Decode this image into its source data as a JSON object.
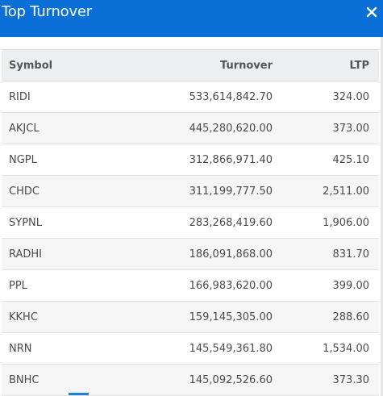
{
  "header": {
    "title": "Top Turnover",
    "close_icon": "close-icon",
    "background": "#0a6fd6"
  },
  "table": {
    "columns": {
      "symbol": "Symbol",
      "turnover": "Turnover",
      "ltp": "LTP"
    },
    "rows": [
      {
        "symbol": "RIDI",
        "turnover": "533,614,842.70",
        "ltp": "324.00"
      },
      {
        "symbol": "AKJCL",
        "turnover": "445,280,620.00",
        "ltp": "373.00"
      },
      {
        "symbol": "NGPL",
        "turnover": "312,866,971.40",
        "ltp": "425.10"
      },
      {
        "symbol": "CHDC",
        "turnover": "311,199,777.50",
        "ltp": "2,511.00"
      },
      {
        "symbol": "SYPNL",
        "turnover": "283,268,419.60",
        "ltp": "1,906.00"
      },
      {
        "symbol": "RADHI",
        "turnover": "186,091,868.00",
        "ltp": "831.70"
      },
      {
        "symbol": "PPL",
        "turnover": "166,983,620.00",
        "ltp": "399.00"
      },
      {
        "symbol": "KKHC",
        "turnover": "159,145,305.00",
        "ltp": "288.60"
      },
      {
        "symbol": "NRN",
        "turnover": "145,549,361.80",
        "ltp": "1,534.00"
      },
      {
        "symbol": "BNHC",
        "turnover": "145,092,526.60",
        "ltp": "373.30"
      }
    ]
  }
}
